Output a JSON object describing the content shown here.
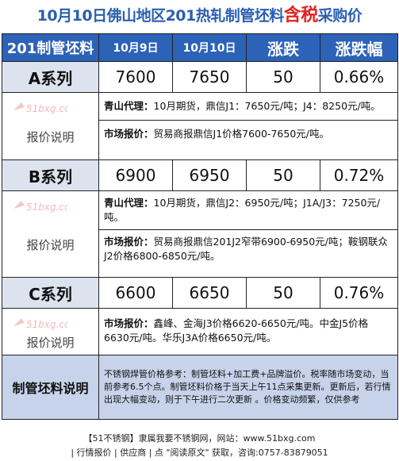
{
  "title": {
    "prefix": "10月10日佛山地区201热轧制管坯料",
    "highlight": "含税",
    "suffix": "采购价"
  },
  "table": {
    "headers": [
      "201制管坯料",
      "10月9日",
      "10月10日",
      "涨跌",
      "涨跌幅"
    ],
    "desc_label": "报价说明",
    "watermark_text": "51bxg.com",
    "rows": [
      {
        "series": "A系列",
        "prev": "7600",
        "curr": "7650",
        "change": "50",
        "pct": "0.66%",
        "desc": [
          {
            "k": "青山代理：",
            "v": "10月期货，鼎信J1：7650元/吨；J4：8250元/吨。"
          },
          {
            "k": "市场报价：",
            "v": "贸易商报鼎信J1价格7600-7650元/吨。"
          }
        ]
      },
      {
        "series": "B系列",
        "prev": "6900",
        "curr": "6950",
        "change": "50",
        "pct": "0.72%",
        "desc": [
          {
            "k": "青山代理：",
            "v": "10月期货，鼎信J2：6950元/吨；J1A/J3：7250元/吨。"
          },
          {
            "k": "市场报价：",
            "v": "贸易商报鼎信201J2窄带6900-6950元/吨；鞍钢联众J2价格6800-6850元/吨。"
          }
        ]
      },
      {
        "series": "C系列",
        "prev": "6600",
        "curr": "6650",
        "change": "50",
        "pct": "0.76%",
        "desc": [
          {
            "k": "市场报价：",
            "v": "鑫峰、金海J3价格6620-6650元/吨。中金J5价格6630元/吨。华乐J3A价格6650元/吨。"
          }
        ]
      }
    ],
    "notes_label": "制管坯料说明",
    "notes_text": "不锈钢焊管价格参考：制管坯料+加工费+品牌溢价。税率随市场变动，当前参考6.5个点。制管坯料价格于当天上午11点采集更新。更新后，若行情出现大幅变动，则于下午进行二次更新 。价格变动频繁，仅供参考"
  },
  "footer": {
    "line1": "【51不锈钢】隶属我要不锈钢网，网站：www.51bxg.com",
    "line2": "| 行情报价 | 供应商 | 点 \"阅读原文\" 获取，咨询:0757-83879051"
  }
}
